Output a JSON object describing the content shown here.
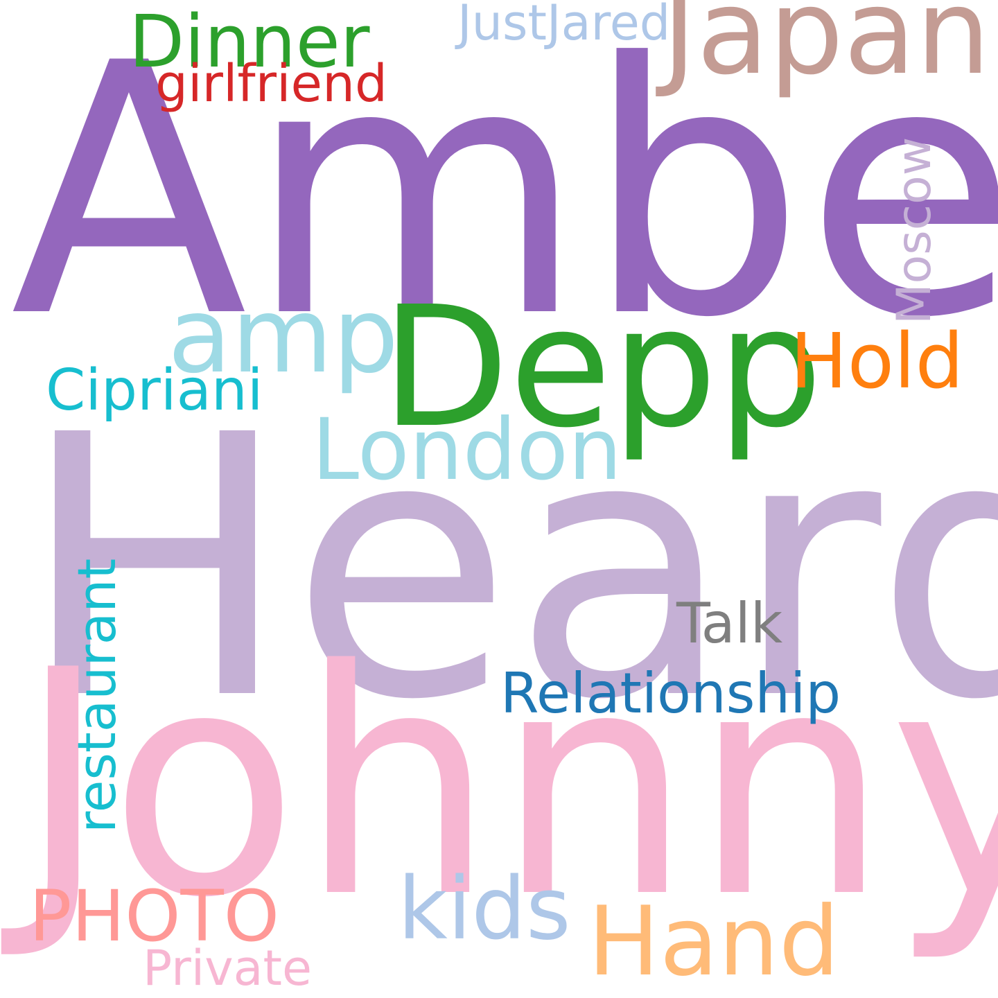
{
  "words": {
    "amber": {
      "text": "Amber",
      "color": "#9467bd"
    },
    "heard": {
      "text": "Heard",
      "color": "#c5b0d5"
    },
    "johnny": {
      "text": "Johnny",
      "color": "#f7b6d2"
    },
    "depp": {
      "text": "Depp",
      "color": "#2ca02c"
    },
    "japan": {
      "text": "Japan",
      "color": "#c49c94"
    },
    "amp": {
      "text": "amp",
      "color": "#9edae5"
    },
    "london": {
      "text": "London",
      "color": "#9edae5"
    },
    "hand": {
      "text": "Hand",
      "color": "#ffbb78"
    },
    "kids": {
      "text": "kids",
      "color": "#aec7e8"
    },
    "dinner": {
      "text": "Dinner",
      "color": "#2ca02c"
    },
    "hold": {
      "text": "Hold",
      "color": "#ff7f0e"
    },
    "cipriani": {
      "text": "Cipriani",
      "color": "#17becf"
    },
    "relationship": {
      "text": "Relationship",
      "color": "#1f77b4"
    },
    "talk": {
      "text": "Talk",
      "color": "#7f7f7f"
    },
    "photo": {
      "text": "PHOTO",
      "color": "#ff9896"
    },
    "private": {
      "text": "Private",
      "color": "#f7b6d2"
    },
    "girlfriend": {
      "text": "girlfriend",
      "color": "#d62728"
    },
    "justjared": {
      "text": "JustJared",
      "color": "#aec7e8"
    },
    "restaurant": {
      "text": "restaurant",
      "color": "#17becf",
      "orientation": "vertical"
    },
    "moscow": {
      "text": "Moscow",
      "color": "#c5b0d5",
      "orientation": "vertical"
    }
  },
  "background_color": "#ffffff"
}
